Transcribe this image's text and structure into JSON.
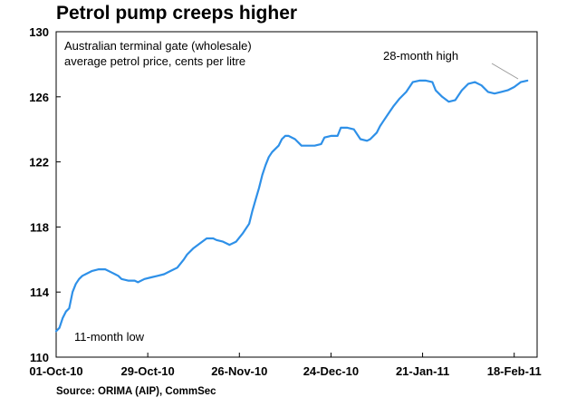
{
  "title": "Petrol pump creeps higher",
  "source": "Source: ORIMA (AIP), CommSec",
  "chart_data": {
    "type": "line",
    "title": "Petrol pump creeps higher",
    "subtitle_lines": [
      "Australian terminal gate (wholesale)",
      "average petrol price, cents per litre"
    ],
    "xlabel": "",
    "ylabel": "",
    "x_range": [
      "2010-10-01",
      "2011-02-25"
    ],
    "ylim": [
      110,
      130
    ],
    "y_ticks": [
      110,
      114,
      118,
      122,
      126,
      130
    ],
    "x_ticks": [
      {
        "date": "2010-10-01",
        "label": "01-Oct-10"
      },
      {
        "date": "2010-10-29",
        "label": "29-Oct-10"
      },
      {
        "date": "2010-11-26",
        "label": "26-Nov-10"
      },
      {
        "date": "2010-12-24",
        "label": "24-Dec-10"
      },
      {
        "date": "2011-01-21",
        "label": "21-Jan-11"
      },
      {
        "date": "2011-02-18",
        "label": "18-Feb-11"
      }
    ],
    "grid": false,
    "line_color": "#2e90e8",
    "annotations": [
      {
        "text": "11-month low",
        "date": "2010-10-01",
        "value": 111.6
      },
      {
        "text": "28-month high",
        "date": "2011-02-22",
        "value": 127.0
      }
    ],
    "series": [
      {
        "x": [
          "2010-10-01",
          "2010-10-02",
          "2010-10-03",
          "2010-10-04",
          "2010-10-05",
          "2010-10-06",
          "2010-10-07",
          "2010-10-08",
          "2010-10-09",
          "2010-10-10",
          "2010-10-12",
          "2010-10-14",
          "2010-10-16",
          "2010-10-18",
          "2010-10-20",
          "2010-10-21",
          "2010-10-23",
          "2010-10-25",
          "2010-10-26",
          "2010-10-28",
          "2010-10-30",
          "2010-11-01",
          "2010-11-03",
          "2010-11-05",
          "2010-11-07",
          "2010-11-09",
          "2010-11-10",
          "2010-11-12",
          "2010-11-14",
          "2010-11-16",
          "2010-11-18",
          "2010-11-19",
          "2010-11-21",
          "2010-11-23",
          "2010-11-25",
          "2010-11-27",
          "2010-11-29",
          "2010-11-30",
          "2010-12-01",
          "2010-12-02",
          "2010-12-03",
          "2010-12-04",
          "2010-12-05",
          "2010-12-06",
          "2010-12-08",
          "2010-12-09",
          "2010-12-10",
          "2010-12-11",
          "2010-12-13",
          "2010-12-15",
          "2010-12-17",
          "2010-12-19",
          "2010-12-21",
          "2010-12-22",
          "2010-12-24",
          "2010-12-26",
          "2010-12-27",
          "2010-12-29",
          "2010-12-31",
          "2011-01-02",
          "2011-01-04",
          "2011-01-05",
          "2011-01-07",
          "2011-01-08",
          "2011-01-09",
          "2011-01-11",
          "2011-01-12",
          "2011-01-14",
          "2011-01-16",
          "2011-01-18",
          "2011-01-20",
          "2011-01-22",
          "2011-01-24",
          "2011-01-25",
          "2011-01-27",
          "2011-01-29",
          "2011-01-31",
          "2011-02-02",
          "2011-02-04",
          "2011-02-06",
          "2011-02-08",
          "2011-02-10",
          "2011-02-12",
          "2011-02-14",
          "2011-02-16",
          "2011-02-18",
          "2011-02-20",
          "2011-02-22"
        ],
        "values": [
          111.6,
          111.8,
          112.4,
          112.8,
          113.0,
          114.0,
          114.5,
          114.8,
          115.0,
          115.1,
          115.3,
          115.4,
          115.4,
          115.2,
          115.0,
          114.8,
          114.7,
          114.7,
          114.6,
          114.8,
          114.9,
          115.0,
          115.1,
          115.3,
          115.5,
          116.0,
          116.3,
          116.7,
          117.0,
          117.3,
          117.3,
          117.2,
          117.1,
          116.9,
          117.1,
          117.6,
          118.2,
          119.0,
          119.7,
          120.4,
          121.2,
          121.8,
          122.3,
          122.6,
          123.0,
          123.4,
          123.6,
          123.6,
          123.4,
          123.0,
          123.0,
          123.0,
          123.1,
          123.5,
          123.6,
          123.6,
          124.1,
          124.1,
          124.0,
          123.4,
          123.3,
          123.4,
          123.8,
          124.2,
          124.5,
          125.1,
          125.4,
          125.9,
          126.3,
          126.9,
          127.0,
          127.0,
          126.9,
          126.4,
          126.0,
          125.7,
          125.8,
          126.4,
          126.8,
          126.9,
          126.7,
          126.3,
          126.2,
          126.3,
          126.4,
          126.6,
          126.9,
          127.0
        ]
      }
    ]
  }
}
